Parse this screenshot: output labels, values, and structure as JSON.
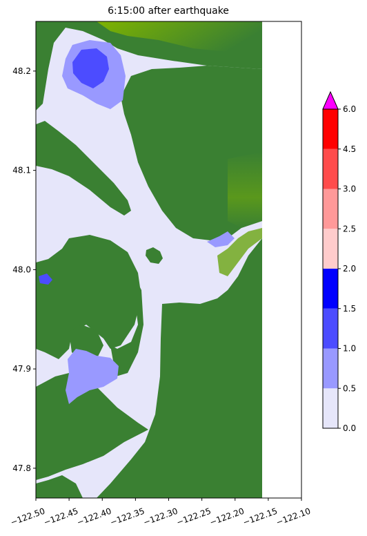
{
  "chart_data": {
    "type": "heatmap",
    "title": "6:15:00 after earthquake",
    "xlabel": "",
    "ylabel": "",
    "xlim": [
      -122.5,
      -122.1
    ],
    "ylim": [
      47.77,
      48.25
    ],
    "x_ticks": [
      "−122.50",
      "−122.45",
      "−122.40",
      "−122.35",
      "−122.30",
      "−122.25",
      "−122.20",
      "−122.15",
      "−122.10"
    ],
    "x_tick_values": [
      -122.5,
      -122.45,
      -122.4,
      -122.35,
      -122.3,
      -122.25,
      -122.2,
      -122.15,
      -122.1
    ],
    "y_ticks": [
      "47.8",
      "47.9",
      "48.0",
      "48.1",
      "48.2"
    ],
    "y_tick_values": [
      47.8,
      47.9,
      48.0,
      48.1,
      48.2
    ],
    "data_extent_lon": [
      -122.5,
      -122.158
    ],
    "colorbar": {
      "boundaries": [
        0.0,
        0.5,
        1.0,
        1.5,
        2.0,
        2.5,
        3.0,
        4.5,
        6.0
      ],
      "tick_labels": [
        "0.0",
        "0.5",
        "1.0",
        "1.5",
        "2.0",
        "2.5",
        "3.0",
        "4.5",
        "6.0"
      ],
      "colors": [
        "#e6e6fa",
        "#9999ff",
        "#4c4cff",
        "#0000ff",
        "#ffcccc",
        "#ff9999",
        "#ff4c4c",
        "#ff0000"
      ],
      "extend_max_color": "#ff00ff",
      "extend": "max"
    },
    "land_colors": [
      "#3a8032",
      "#6aa512",
      "#7fb300"
    ],
    "no_data_color": "#ffffff"
  }
}
